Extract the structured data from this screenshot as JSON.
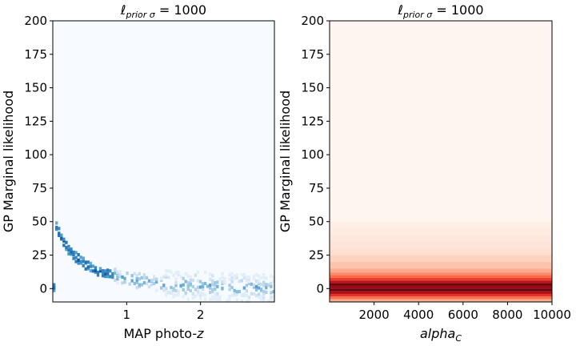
{
  "chart_data": [
    {
      "type": "heatmap",
      "title_main": "ℓ",
      "title_sub": "prior σ",
      "title_suffix": " = 1000",
      "xlabel_main": "MAP photo-",
      "xlabel_italic": "z",
      "ylabel": "GP Marginal likelihood",
      "xlim": [
        0.0,
        3.0
      ],
      "ylim": [
        -10,
        200
      ],
      "xticks": [
        1,
        2
      ],
      "xtick_labels": [
        "1",
        "2"
      ],
      "yticks": [
        0,
        25,
        50,
        75,
        100,
        125,
        150,
        175,
        200
      ],
      "ytick_labels": [
        "0",
        "25",
        "50",
        "75",
        "100",
        "125",
        "150",
        "175",
        "200"
      ],
      "colormap": "Blues",
      "background": "#f7fbff",
      "ridge": [
        {
          "x": 0.02,
          "y": 50
        },
        {
          "x": 0.1,
          "y": 40
        },
        {
          "x": 0.2,
          "y": 30
        },
        {
          "x": 0.3,
          "y": 24
        },
        {
          "x": 0.4,
          "y": 20
        },
        {
          "x": 0.5,
          "y": 16
        },
        {
          "x": 0.6,
          "y": 13
        },
        {
          "x": 0.8,
          "y": 10
        },
        {
          "x": 1.0,
          "y": 7
        },
        {
          "x": 1.3,
          "y": 5
        },
        {
          "x": 1.6,
          "y": 3
        },
        {
          "x": 2.0,
          "y": 2
        },
        {
          "x": 2.5,
          "y": 1
        },
        {
          "x": 3.0,
          "y": 0
        }
      ]
    },
    {
      "type": "heatmap",
      "title_main": "ℓ",
      "title_sub": "prior σ",
      "title_suffix": " = 1000",
      "xlabel_main": "alpha",
      "xlabel_sub": "C",
      "ylabel": "GP Marginal likelihood",
      "xlim": [
        0,
        10000
      ],
      "ylim": [
        -10,
        200
      ],
      "xticks": [
        2000,
        4000,
        6000,
        8000,
        10000
      ],
      "xtick_labels": [
        "2000",
        "4000",
        "6000",
        "8000",
        "10000"
      ],
      "yticks": [
        0,
        25,
        50,
        75,
        100,
        125,
        150,
        175,
        200
      ],
      "ytick_labels": [
        "0",
        "25",
        "50",
        "75",
        "100",
        "125",
        "150",
        "175",
        "200"
      ],
      "colormap": "Reds",
      "background": "#fff5f0",
      "bands": [
        {
          "y0": 45,
          "y1": 50,
          "value": 0.04
        },
        {
          "y0": 40,
          "y1": 45,
          "value": 0.06
        },
        {
          "y0": 35,
          "y1": 40,
          "value": 0.08
        },
        {
          "y0": 30,
          "y1": 35,
          "value": 0.1
        },
        {
          "y0": 25,
          "y1": 30,
          "value": 0.13
        },
        {
          "y0": 20,
          "y1": 25,
          "value": 0.17
        },
        {
          "y0": 15,
          "y1": 20,
          "value": 0.22
        },
        {
          "y0": 12,
          "y1": 15,
          "value": 0.3
        },
        {
          "y0": 10,
          "y1": 12,
          "value": 0.4
        },
        {
          "y0": 8,
          "y1": 10,
          "value": 0.5
        },
        {
          "y0": 6,
          "y1": 8,
          "value": 0.62
        },
        {
          "y0": 4,
          "y1": 6,
          "value": 0.8
        },
        {
          "y0": 2,
          "y1": 4,
          "value": 0.98
        },
        {
          "y0": 0,
          "y1": 2,
          "value": 0.9
        },
        {
          "y0": -2,
          "y1": 0,
          "value": 1.0
        },
        {
          "y0": -4,
          "y1": -2,
          "value": 0.85
        },
        {
          "y0": -6,
          "y1": -4,
          "value": 0.66
        },
        {
          "y0": -8,
          "y1": -6,
          "value": 0.48
        },
        {
          "y0": -10,
          "y1": -8,
          "value": 0.3
        }
      ]
    }
  ]
}
